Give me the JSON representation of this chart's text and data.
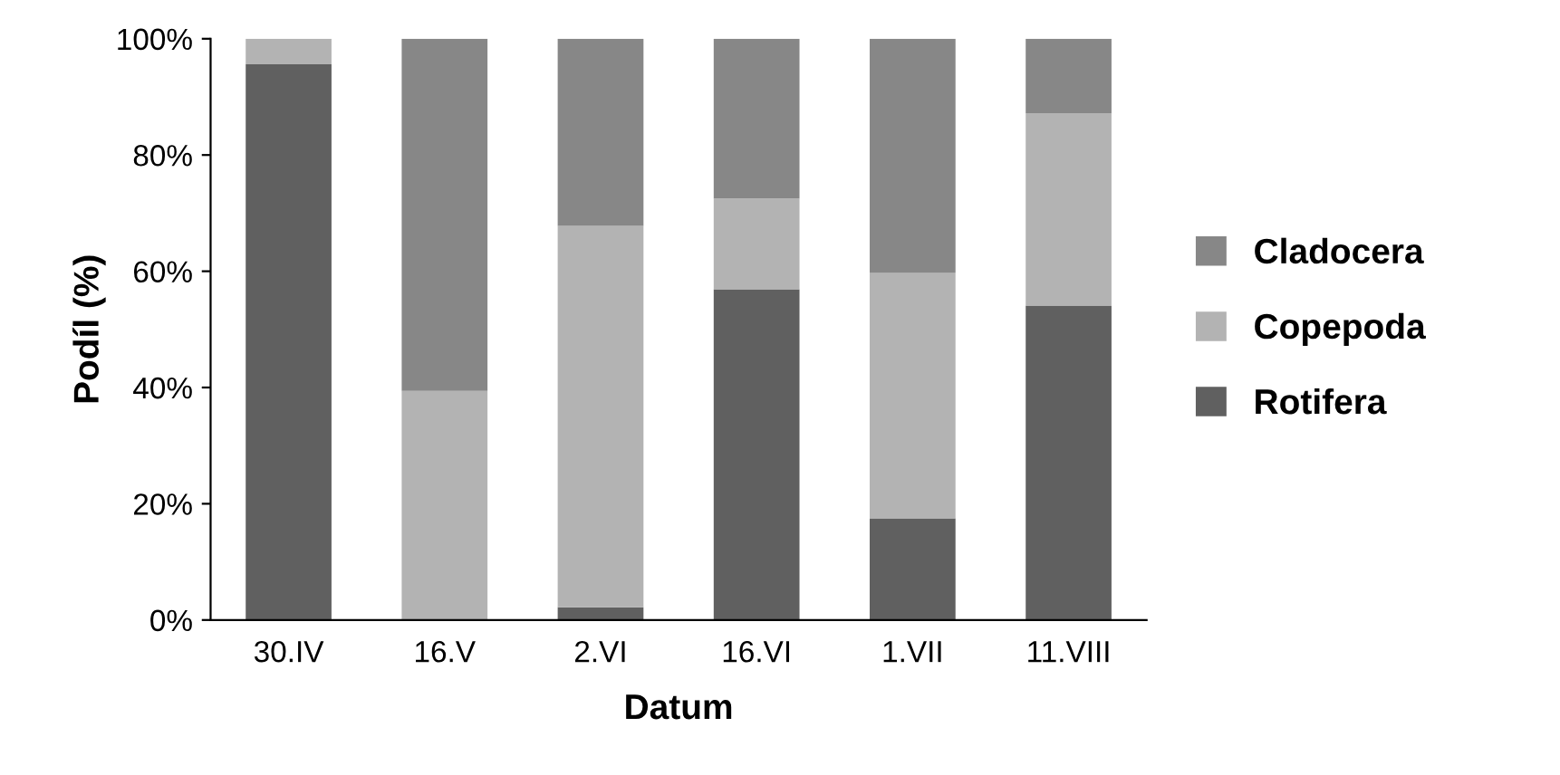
{
  "chart_data": {
    "type": "bar",
    "stacked": true,
    "xlabel": "Datum",
    "ylabel": "Podíl (%)",
    "categories": [
      "30.IV",
      "16.V",
      "2.VI",
      "16.VI",
      "1.VII",
      "11.VIII"
    ],
    "series": [
      {
        "name": "Rotifera",
        "color": "#606060",
        "values": [
          95.6,
          0,
          2.2,
          56.9,
          17.5,
          54.1
        ]
      },
      {
        "name": "Copepoda",
        "color": "#b3b3b3",
        "values": [
          4.4,
          39.4,
          65.6,
          15.6,
          42.2,
          33.1
        ]
      },
      {
        "name": "Cladocera",
        "color": "#878787",
        "values": [
          0,
          60.6,
          32.2,
          27.5,
          40.3,
          12.8
        ]
      }
    ],
    "ylim": [
      0,
      100
    ],
    "yticks": [
      {
        "value": 0,
        "label": "0%"
      },
      {
        "value": 20,
        "label": "20%"
      },
      {
        "value": 40,
        "label": "40%"
      },
      {
        "value": 60,
        "label": "60%"
      },
      {
        "value": 80,
        "label": "80%"
      },
      {
        "value": 100,
        "label": "100%"
      }
    ],
    "grid": false,
    "legend": "right"
  }
}
